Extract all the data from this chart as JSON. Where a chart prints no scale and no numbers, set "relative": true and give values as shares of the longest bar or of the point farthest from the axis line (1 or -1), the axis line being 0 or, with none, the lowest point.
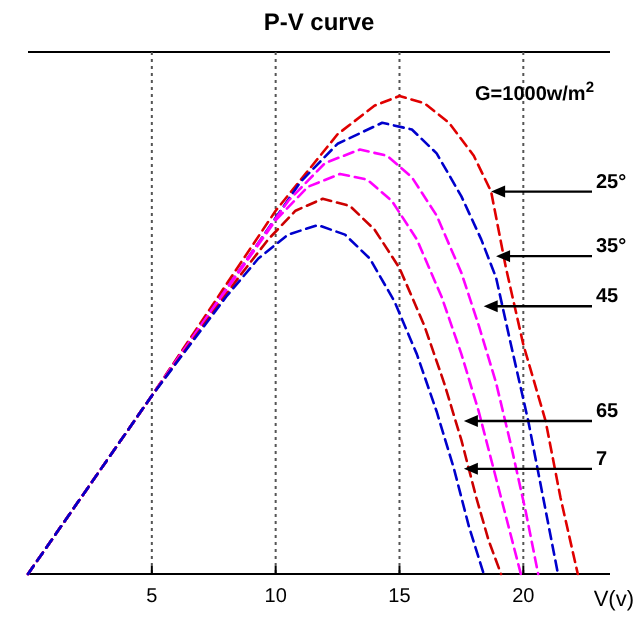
{
  "chart_data": {
    "type": "line",
    "title": "P-V curve",
    "xlabel": "V(v)",
    "relative": true,
    "xlim": [
      0,
      23.5
    ],
    "xticks": [
      5,
      10,
      15,
      20
    ],
    "grid": "x",
    "line_style": "dashed",
    "series": [
      {
        "color": "#e00000",
        "x": [
          0,
          5,
          10,
          12.5,
          14,
          15,
          16,
          17,
          18,
          18.7,
          19.3,
          20,
          20.9,
          21.5,
          22.2
        ],
        "values": [
          0,
          0.373,
          0.76,
          0.92,
          0.98,
          1.0,
          0.985,
          0.944,
          0.875,
          0.8,
          0.64,
          0.48,
          0.32,
          0.16,
          0
        ]
      },
      {
        "color": "#0000cc",
        "x": [
          0,
          5,
          9,
          11,
          12.5,
          14.3,
          15.5,
          16.5,
          17.5,
          18.3,
          18.9,
          19.5,
          20.2,
          20.8,
          21.4
        ],
        "values": [
          0,
          0.373,
          0.67,
          0.82,
          0.9,
          0.944,
          0.93,
          0.88,
          0.79,
          0.7,
          0.62,
          0.48,
          0.32,
          0.16,
          0
        ]
      },
      {
        "color": "#ff00ff",
        "x": [
          0,
          5,
          9,
          10.5,
          12,
          13.4,
          14.5,
          15.5,
          16.5,
          17.5,
          18.2,
          18.9,
          19.5,
          20.1,
          20.6
        ],
        "values": [
          0,
          0.373,
          0.67,
          0.78,
          0.86,
          0.888,
          0.875,
          0.83,
          0.75,
          0.63,
          0.52,
          0.4,
          0.27,
          0.13,
          0
        ]
      },
      {
        "color": "#ff00ff",
        "x": [
          0,
          5,
          8.5,
          10,
          11.3,
          12.6,
          13.7,
          14.7,
          15.7,
          16.7,
          17.5,
          18.2,
          18.8,
          19.4,
          19.9
        ],
        "values": [
          0,
          0.373,
          0.63,
          0.74,
          0.81,
          0.837,
          0.825,
          0.78,
          0.7,
          0.58,
          0.46,
          0.34,
          0.22,
          0.1,
          0
        ]
      },
      {
        "color": "#cc0000",
        "x": [
          0,
          5,
          8.5,
          9.7,
          10.8,
          11.9,
          13,
          14,
          15,
          16,
          16.8,
          17.5,
          18.1,
          18.6,
          19.1
        ],
        "values": [
          0,
          0.373,
          0.62,
          0.7,
          0.76,
          0.785,
          0.77,
          0.72,
          0.64,
          0.52,
          0.4,
          0.28,
          0.16,
          0.07,
          0
        ]
      },
      {
        "color": "#0000cc",
        "x": [
          0,
          5,
          8,
          9.3,
          10.5,
          11.7,
          12.8,
          13.8,
          14.8,
          15.7,
          16.5,
          17.2,
          17.8,
          18.4
        ],
        "values": [
          0,
          0.373,
          0.58,
          0.66,
          0.71,
          0.73,
          0.71,
          0.66,
          0.57,
          0.46,
          0.34,
          0.22,
          0.1,
          0
        ]
      }
    ],
    "annotations": [
      "G=1000w/m$^{2}$",
      {
        "text": "25°",
        "x": 18.7,
        "y": 0.8
      },
      {
        "text": "35°",
        "x": 18.9,
        "y": 0.665
      },
      {
        "text": "45",
        "x": 18.4,
        "y": 0.56
      },
      {
        "text": "65",
        "x": 17.6,
        "y": 0.32
      },
      {
        "text": "7",
        "x": 17.6,
        "y": 0.22
      }
    ]
  }
}
